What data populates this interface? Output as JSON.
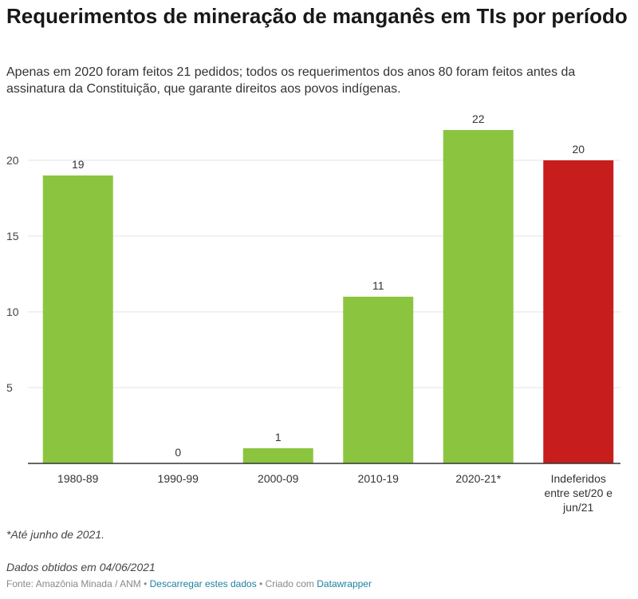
{
  "header": {
    "title": "Requerimentos de mineração de manganês em TIs por período",
    "subtitle": "Apenas em 2020 foram feitos 21 pedidos; todos os requerimentos dos anos 80 foram feitos antes da assinatura da Constituição, que garante direitos aos povos indígenas."
  },
  "chart_data": {
    "type": "bar",
    "categories": [
      "1980-89",
      "1990-99",
      "2000-09",
      "2010-19",
      "2020-21*",
      "Indeferidos entre set/20 e jun/21"
    ],
    "values": [
      19,
      0,
      1,
      11,
      22,
      20
    ],
    "colors": [
      "#8bc53f",
      "#8bc53f",
      "#8bc53f",
      "#8bc53f",
      "#8bc53f",
      "#c71e1d"
    ],
    "yticks": [
      5,
      10,
      15,
      20
    ],
    "ylim": [
      0,
      22
    ],
    "grid": true,
    "legend": "none"
  },
  "notes": {
    "footnote": "*Até junho de 2021.",
    "data_date": "Dados obtidos em 04/06/2021"
  },
  "footer": {
    "source": "Fonte: Amazônia Minada / ANM",
    "sep1": " • ",
    "download": "Descarregar estes dados",
    "sep2": " • Criado com ",
    "tool": "Datawrapper"
  }
}
